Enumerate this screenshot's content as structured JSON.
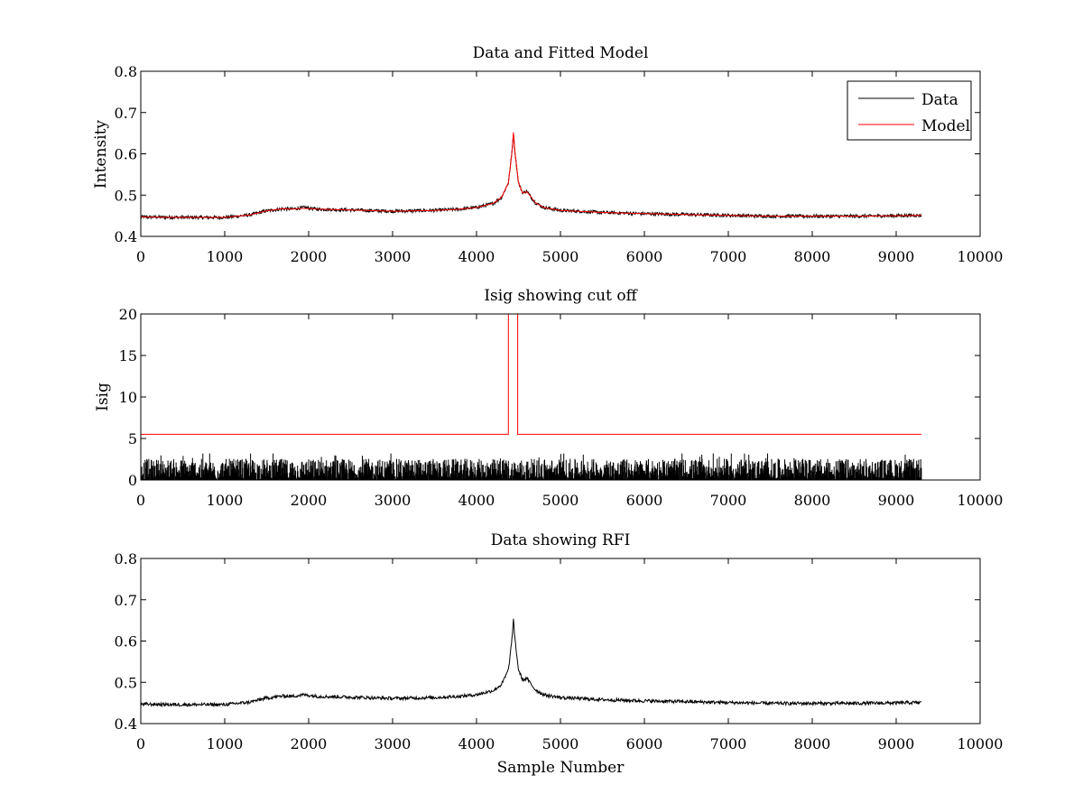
{
  "figure": {
    "background": "#ffffff"
  },
  "chart_data": [
    {
      "type": "line",
      "title": "Data and Fitted Model",
      "xlabel": "",
      "ylabel": "Intensity",
      "xlim": [
        0,
        10000
      ],
      "ylim": [
        0.4,
        0.8
      ],
      "xticks": [
        0,
        1000,
        2000,
        3000,
        4000,
        5000,
        6000,
        7000,
        8000,
        9000,
        10000
      ],
      "yticks": [
        0.4,
        0.5,
        0.6,
        0.7,
        0.8
      ],
      "grid": false,
      "legend": {
        "position": "top-right",
        "entries": [
          "Data",
          "Model"
        ]
      },
      "series": [
        {
          "name": "Data",
          "color": "#000000",
          "noise": 0.004,
          "x": [
            0,
            500,
            1000,
            1300,
            1500,
            1700,
            1800,
            1950,
            2100,
            2500,
            3000,
            3500,
            3800,
            4000,
            4200,
            4300,
            4380,
            4420,
            4440,
            4460,
            4500,
            4550,
            4600,
            4650,
            4700,
            4800,
            5000,
            5500,
            6000,
            6500,
            7000,
            7500,
            8000,
            8500,
            9000,
            9300
          ],
          "y": [
            0.447,
            0.446,
            0.446,
            0.452,
            0.462,
            0.467,
            0.466,
            0.47,
            0.466,
            0.464,
            0.461,
            0.463,
            0.466,
            0.47,
            0.48,
            0.495,
            0.53,
            0.6,
            0.65,
            0.6,
            0.53,
            0.505,
            0.51,
            0.495,
            0.482,
            0.47,
            0.463,
            0.458,
            0.455,
            0.453,
            0.451,
            0.449,
            0.449,
            0.449,
            0.45,
            0.451
          ]
        },
        {
          "name": "Model",
          "color": "#ff0000",
          "noise": 0,
          "x": [
            0,
            500,
            1000,
            1300,
            1500,
            1700,
            1800,
            1950,
            2100,
            2500,
            3000,
            3500,
            3800,
            4000,
            4200,
            4300,
            4380,
            4420,
            4440,
            4460,
            4500,
            4550,
            4600,
            4650,
            4700,
            4800,
            5000,
            5500,
            6000,
            6500,
            7000,
            7500,
            8000,
            8500,
            9000,
            9300
          ],
          "y": [
            0.447,
            0.446,
            0.446,
            0.452,
            0.462,
            0.467,
            0.466,
            0.468,
            0.466,
            0.464,
            0.461,
            0.463,
            0.466,
            0.47,
            0.48,
            0.495,
            0.53,
            0.6,
            0.652,
            0.6,
            0.53,
            0.505,
            0.508,
            0.495,
            0.482,
            0.47,
            0.463,
            0.458,
            0.455,
            0.453,
            0.451,
            0.449,
            0.449,
            0.449,
            0.45,
            0.451
          ]
        }
      ]
    },
    {
      "type": "line",
      "title": "Isig showing cut off",
      "xlabel": "",
      "ylabel": "Isig",
      "xlim": [
        0,
        10000
      ],
      "ylim": [
        0,
        20
      ],
      "xticks": [
        0,
        1000,
        2000,
        3000,
        4000,
        5000,
        6000,
        7000,
        8000,
        9000,
        10000
      ],
      "yticks": [
        0,
        5,
        10,
        15,
        20
      ],
      "grid": false,
      "series": [
        {
          "color": "#000000",
          "noise_max": 3.2,
          "x": [
            0,
            9300
          ],
          "y": [
            0,
            0
          ]
        },
        {
          "color": "#ff0000",
          "noise": 0,
          "x": [
            0,
            4380,
            4380,
            4490,
            4490,
            9300
          ],
          "y": [
            5.5,
            5.5,
            20,
            20,
            5.5,
            5.5
          ]
        }
      ]
    },
    {
      "type": "line",
      "title": "Data showing RFI",
      "xlabel": "Sample Number",
      "ylabel": "",
      "xlim": [
        0,
        10000
      ],
      "ylim": [
        0.4,
        0.8
      ],
      "xticks": [
        0,
        1000,
        2000,
        3000,
        4000,
        5000,
        6000,
        7000,
        8000,
        9000,
        10000
      ],
      "yticks": [
        0.4,
        0.5,
        0.6,
        0.7,
        0.8
      ],
      "grid": false,
      "series": [
        {
          "color": "#000000",
          "noise": 0.004,
          "x": [
            0,
            500,
            1000,
            1300,
            1500,
            1700,
            1800,
            1950,
            2100,
            2500,
            3000,
            3500,
            3800,
            4000,
            4200,
            4300,
            4380,
            4420,
            4440,
            4460,
            4500,
            4550,
            4600,
            4650,
            4700,
            4800,
            5000,
            5500,
            6000,
            6500,
            7000,
            7500,
            8000,
            8500,
            9000,
            9300
          ],
          "y": [
            0.447,
            0.446,
            0.446,
            0.452,
            0.462,
            0.467,
            0.466,
            0.47,
            0.466,
            0.464,
            0.461,
            0.463,
            0.466,
            0.47,
            0.48,
            0.495,
            0.53,
            0.6,
            0.65,
            0.6,
            0.53,
            0.505,
            0.51,
            0.495,
            0.482,
            0.47,
            0.463,
            0.458,
            0.455,
            0.453,
            0.451,
            0.449,
            0.449,
            0.449,
            0.45,
            0.451
          ]
        }
      ]
    }
  ]
}
